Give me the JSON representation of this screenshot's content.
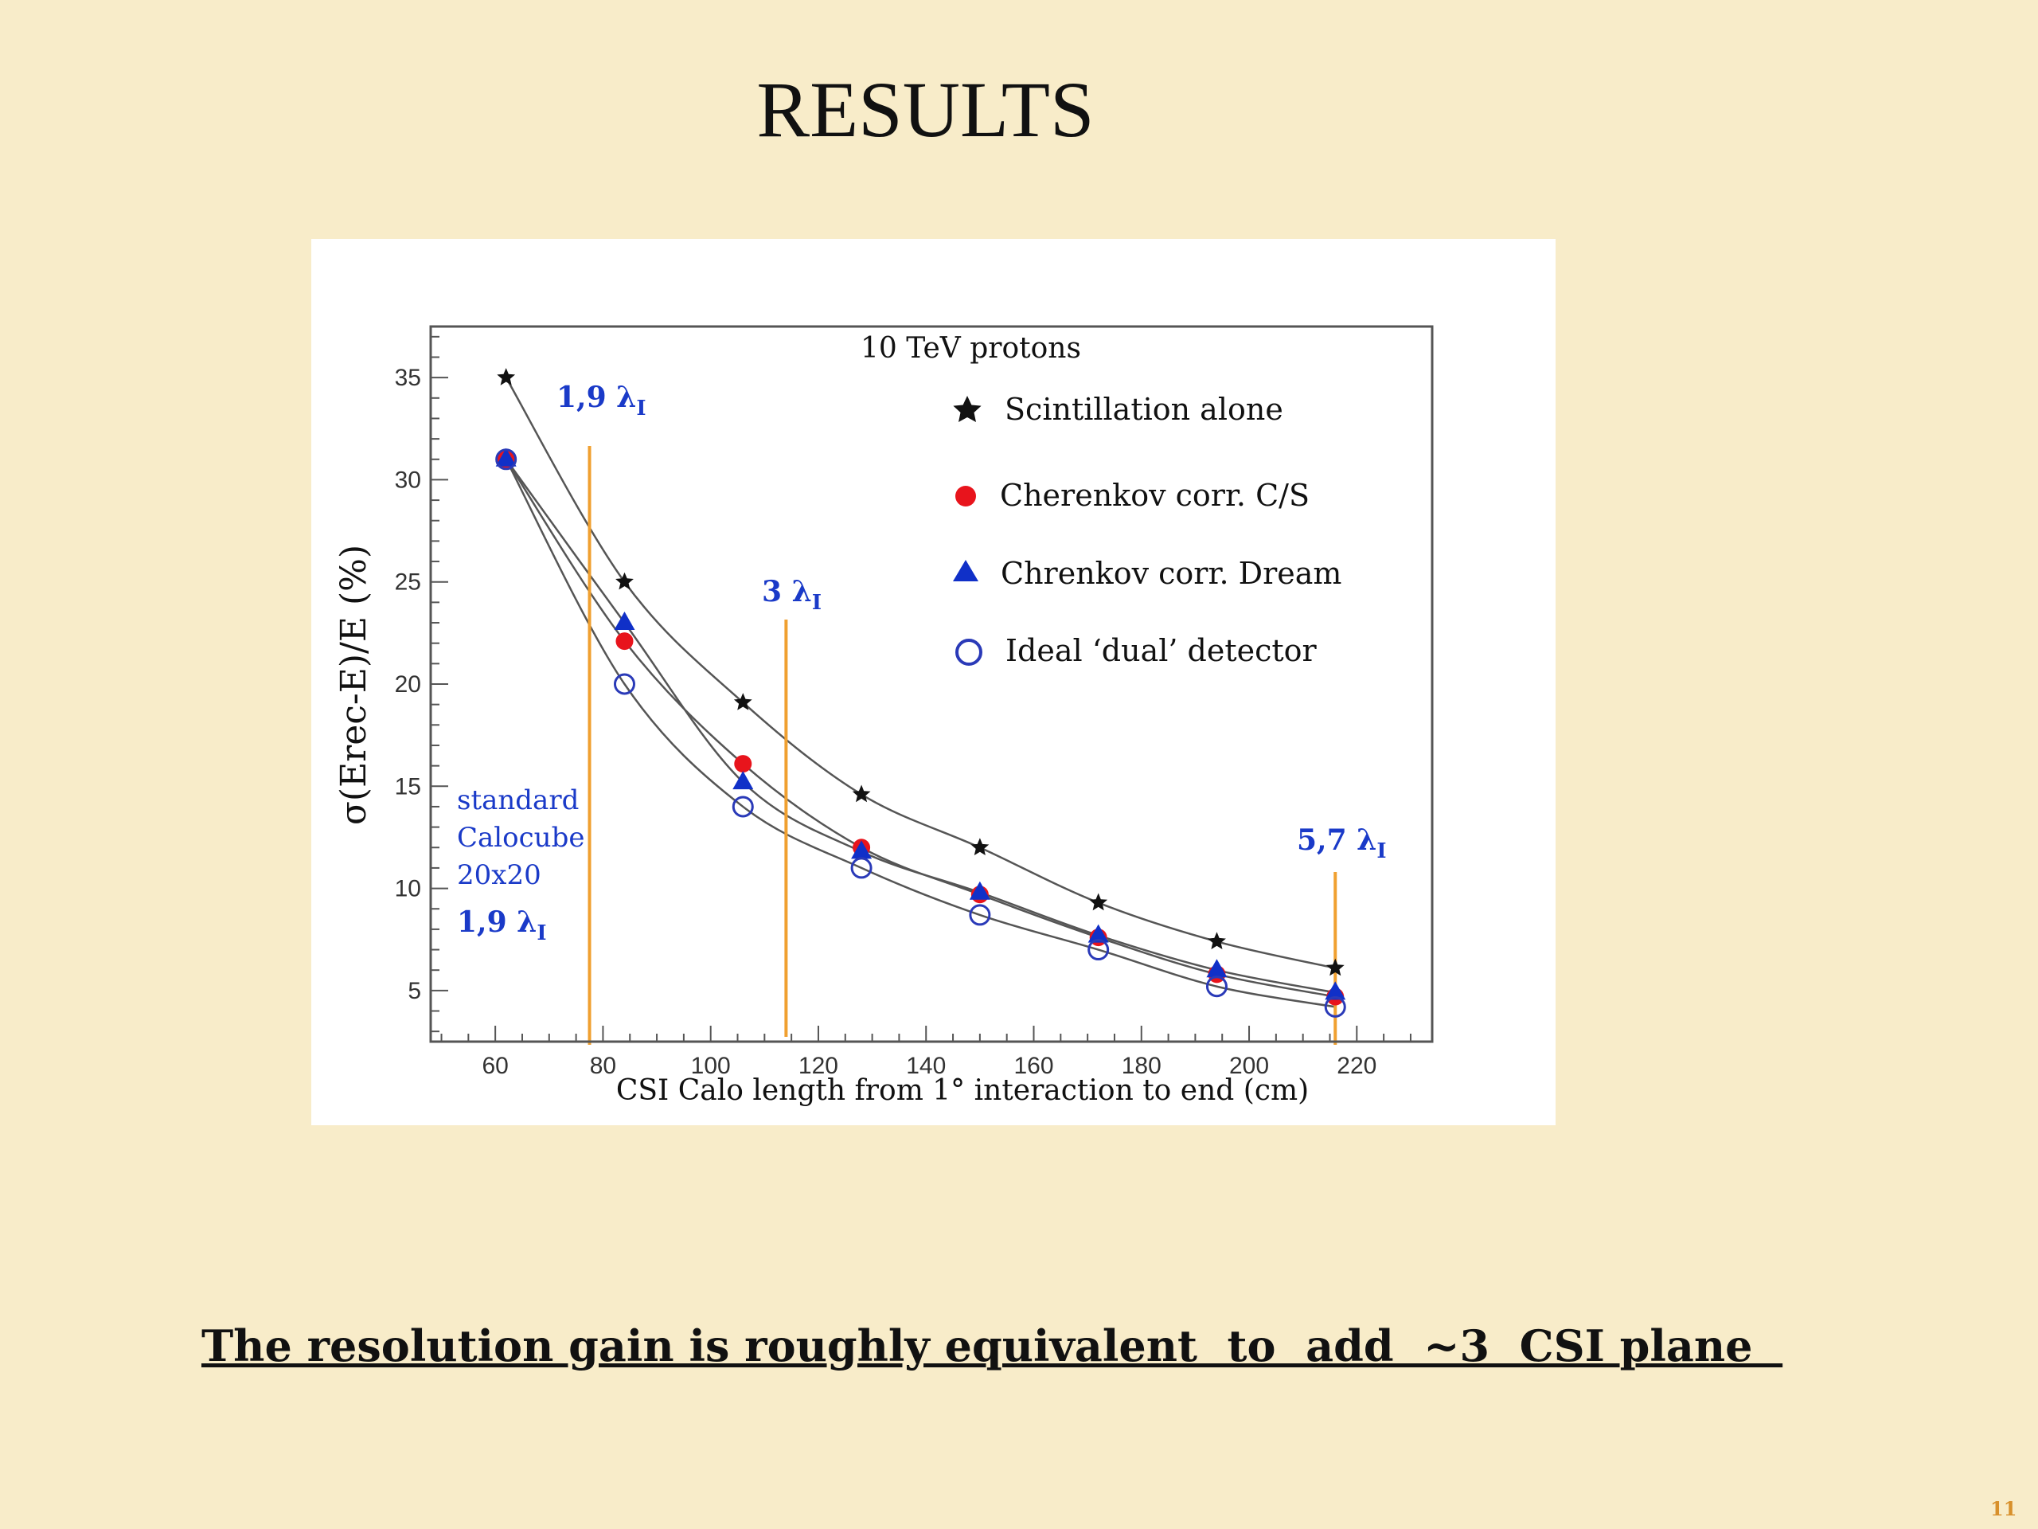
{
  "slide": {
    "title": "RESULTS",
    "note": "The resolution gain is roughly equivalent  to  add  ~3  CSI plane  ",
    "page_number": "11"
  },
  "colors": {
    "background": "#f8ecc9",
    "scintillation": "#111111",
    "cherenkov": "#e8141c",
    "dream": "#1030c8",
    "ideal": "#2a3ab8",
    "annotation": "#1a3ac8",
    "marker_lines": "#f0a030",
    "curves": "#555555"
  },
  "chart_data": {
    "type": "scatter",
    "title": "10 TeV protons",
    "xlabel": "CSI Calo length from 1° interaction to end (cm)",
    "ylabel": "σ(Erec-E)/E  (%)",
    "xlim": [
      48,
      234
    ],
    "ylim": [
      2.5,
      37.5
    ],
    "xticks": [
      60,
      80,
      100,
      120,
      140,
      160,
      180,
      200,
      220
    ],
    "yticks": [
      5,
      10,
      15,
      20,
      25,
      30,
      35
    ],
    "grid": false,
    "legend_position": "top-right",
    "x": [
      62,
      84,
      106,
      128,
      150,
      172,
      194,
      216
    ],
    "series": [
      {
        "name": "Scintillation alone",
        "marker": "star",
        "values": [
          35.0,
          25.0,
          19.1,
          14.6,
          12.0,
          9.3,
          7.4,
          6.1
        ]
      },
      {
        "name": "Cherenkov corr. C/S",
        "marker": "dot",
        "values": [
          31.0,
          22.1,
          16.1,
          12.0,
          9.7,
          7.6,
          5.8,
          4.7
        ]
      },
      {
        "name": "Chrenkov corr.  Dream",
        "marker": "triangle",
        "values": [
          31.0,
          23.0,
          15.2,
          11.8,
          9.8,
          7.7,
          6.0,
          4.9
        ]
      },
      {
        "name": "Ideal ‘dual’ detector",
        "marker": "circle",
        "values": [
          31.0,
          20.0,
          14.0,
          11.0,
          8.7,
          7.0,
          5.2,
          4.2
        ]
      }
    ],
    "vertical_markers": [
      {
        "x": 77.5,
        "label_value": "1,9 λ",
        "subscript": "I"
      },
      {
        "x": 114,
        "label_value": "3 λ",
        "subscript": "I"
      },
      {
        "x": 216,
        "label_value": "5,7 λ",
        "subscript": "I"
      }
    ],
    "annotation": {
      "lines": [
        "standard",
        "Calocube",
        "20x20"
      ],
      "lambda": "1,9 λ",
      "subscript": "I"
    }
  }
}
